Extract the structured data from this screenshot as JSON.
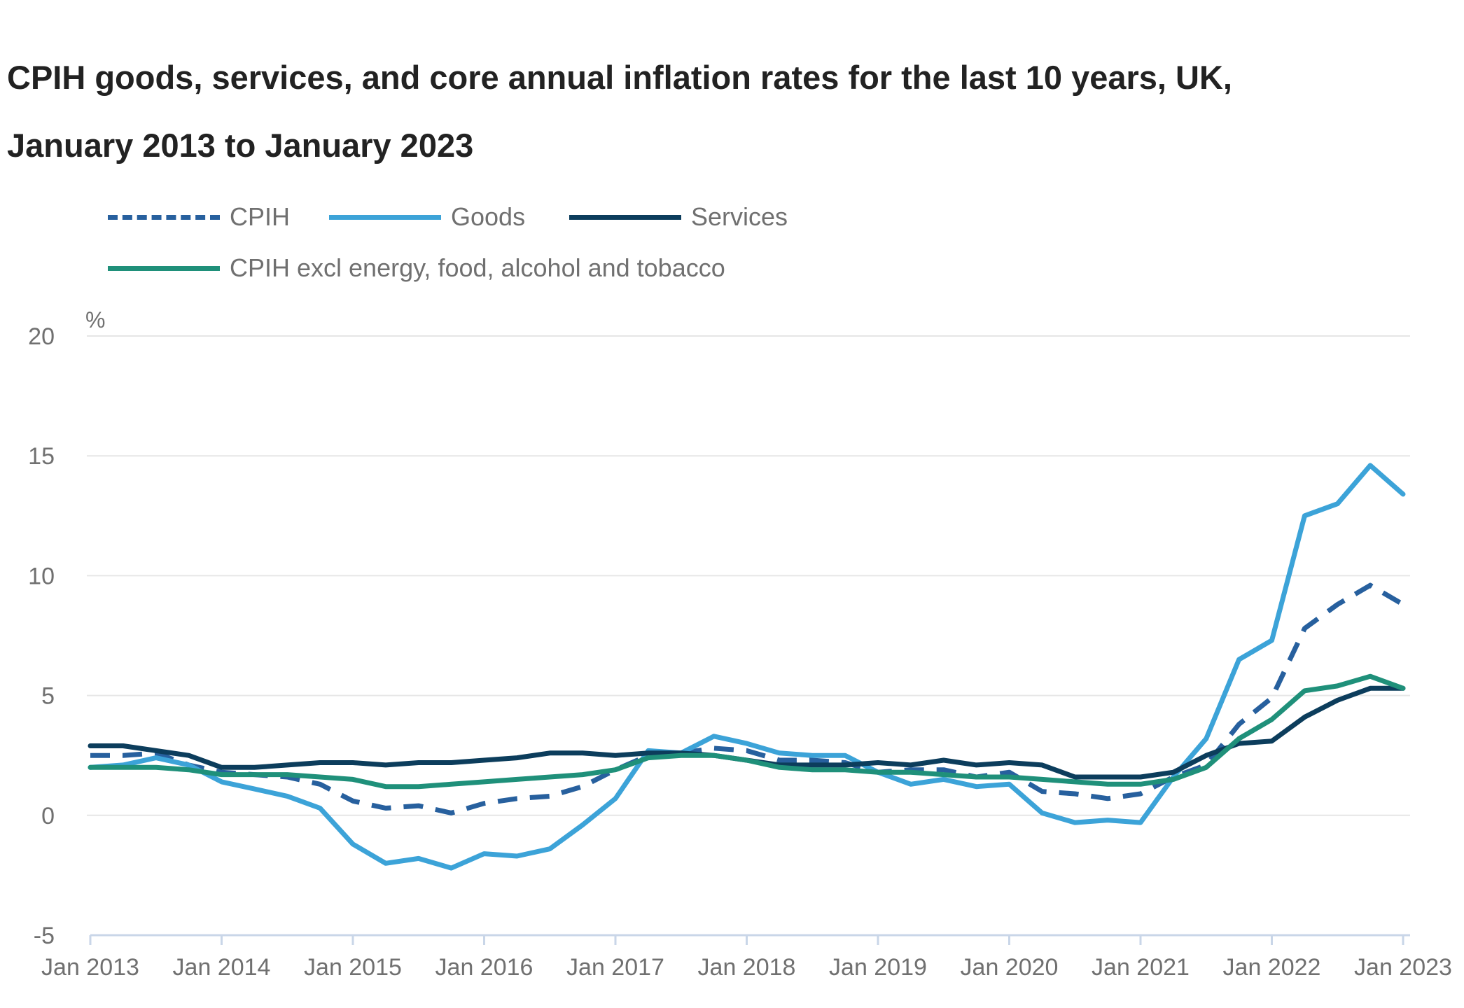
{
  "chart_data": {
    "type": "line",
    "title": "CPIH goods, services, and core annual inflation rates for the last 10 years, UK, January 2013 to January 2023",
    "ylabel": "%",
    "xlabel": "",
    "ylim": [
      -5,
      20
    ],
    "yticks": [
      -5,
      0,
      5,
      10,
      15,
      20
    ],
    "xlim": [
      "2013-01",
      "2023-01"
    ],
    "xtick_labels": [
      "Jan 2013",
      "Jan 2014",
      "Jan 2015",
      "Jan 2016",
      "Jan 2017",
      "Jan 2018",
      "Jan 2019",
      "Jan 2020",
      "Jan 2021",
      "Jan 2022",
      "Jan 2023"
    ],
    "grid": true,
    "legend_position": "top-left",
    "x": [
      "2013-01",
      "2013-04",
      "2013-07",
      "2013-10",
      "2014-01",
      "2014-04",
      "2014-07",
      "2014-10",
      "2015-01",
      "2015-04",
      "2015-07",
      "2015-10",
      "2016-01",
      "2016-04",
      "2016-07",
      "2016-10",
      "2017-01",
      "2017-04",
      "2017-07",
      "2017-10",
      "2018-01",
      "2018-04",
      "2018-07",
      "2018-10",
      "2019-01",
      "2019-04",
      "2019-07",
      "2019-10",
      "2020-01",
      "2020-04",
      "2020-07",
      "2020-10",
      "2021-01",
      "2021-04",
      "2021-07",
      "2021-10",
      "2022-01",
      "2022-04",
      "2022-07",
      "2022-10",
      "2023-01"
    ],
    "series": [
      {
        "name": "CPIH",
        "color": "#27609e",
        "dash": true,
        "values": [
          2.5,
          2.5,
          2.6,
          2.1,
          1.8,
          1.7,
          1.6,
          1.3,
          0.6,
          0.3,
          0.4,
          0.1,
          0.5,
          0.7,
          0.8,
          1.2,
          1.9,
          2.5,
          2.6,
          2.8,
          2.7,
          2.3,
          2.3,
          2.2,
          1.8,
          1.9,
          1.9,
          1.6,
          1.8,
          1.0,
          0.9,
          0.7,
          0.9,
          1.6,
          2.1,
          3.8,
          4.9,
          7.8,
          8.8,
          9.6,
          8.8
        ]
      },
      {
        "name": "Goods",
        "color": "#3ca3d8",
        "dash": false,
        "values": [
          2.0,
          2.1,
          2.4,
          2.1,
          1.4,
          1.1,
          0.8,
          0.3,
          -1.2,
          -2.0,
          -1.8,
          -2.2,
          -1.6,
          -1.7,
          -1.4,
          -0.4,
          0.7,
          2.7,
          2.6,
          3.3,
          3.0,
          2.6,
          2.5,
          2.5,
          1.8,
          1.3,
          1.5,
          1.2,
          1.3,
          0.1,
          -0.3,
          -0.2,
          -0.3,
          1.6,
          3.2,
          6.5,
          7.3,
          12.5,
          13.0,
          14.6,
          13.4
        ]
      },
      {
        "name": "Services",
        "color": "#0c3d5c",
        "dash": false,
        "values": [
          2.9,
          2.9,
          2.7,
          2.5,
          2.0,
          2.0,
          2.1,
          2.2,
          2.2,
          2.1,
          2.2,
          2.2,
          2.3,
          2.4,
          2.6,
          2.6,
          2.5,
          2.6,
          2.6,
          2.5,
          2.3,
          2.1,
          2.1,
          2.1,
          2.2,
          2.1,
          2.3,
          2.1,
          2.2,
          2.1,
          1.6,
          1.6,
          1.6,
          1.8,
          2.5,
          3.0,
          3.1,
          4.1,
          4.8,
          5.3,
          5.3
        ]
      },
      {
        "name": "CPIH excl energy, food, alcohol and tobacco",
        "color": "#1f907a",
        "dash": false,
        "values": [
          2.0,
          2.0,
          2.0,
          1.9,
          1.7,
          1.7,
          1.7,
          1.6,
          1.5,
          1.2,
          1.2,
          1.3,
          1.4,
          1.5,
          1.6,
          1.7,
          1.9,
          2.4,
          2.5,
          2.5,
          2.3,
          2.0,
          1.9,
          1.9,
          1.8,
          1.8,
          1.7,
          1.6,
          1.6,
          1.5,
          1.4,
          1.3,
          1.3,
          1.5,
          2.0,
          3.2,
          4.0,
          5.2,
          5.4,
          5.8,
          5.3
        ]
      }
    ]
  }
}
